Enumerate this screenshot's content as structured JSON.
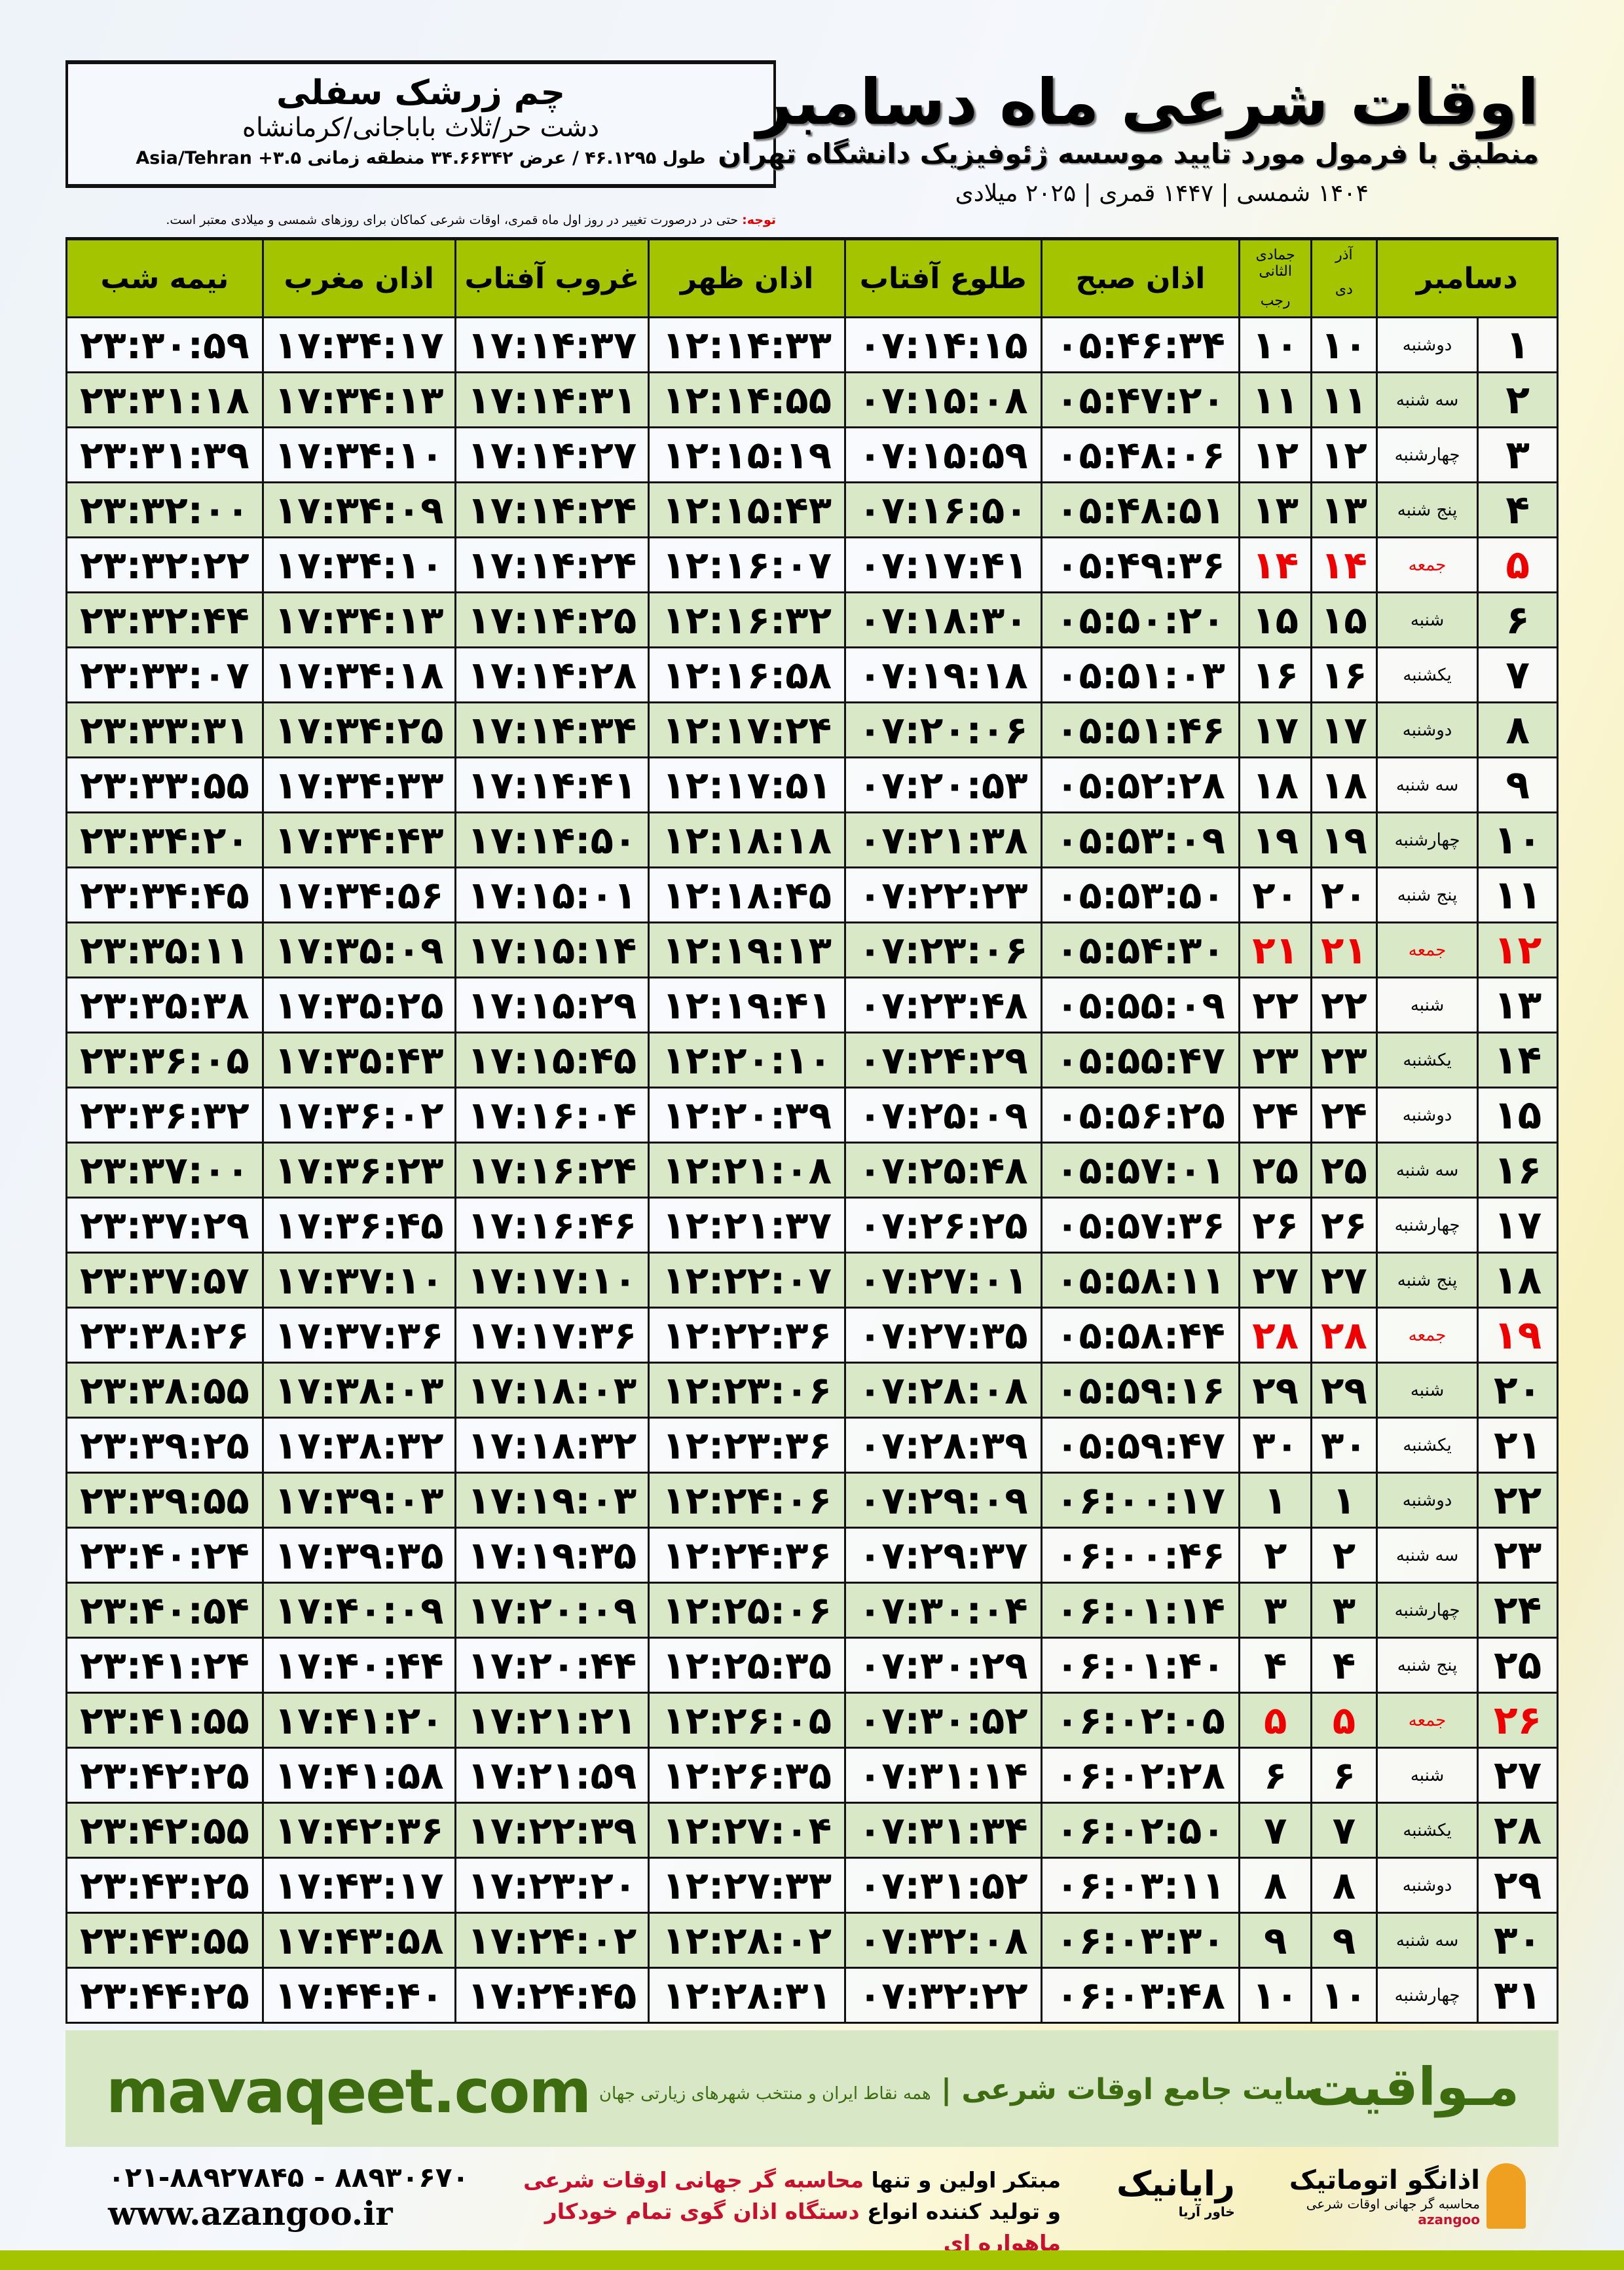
{
  "location": {
    "name": "چم زرشک سفلی",
    "region": "دشت حر/ثلاث باباجانی/کرمانشاه",
    "coords": "طول ۴۶.۱۲۹۵ / عرض ۳۴.۶۶۳۴۲ منطقه زمانی ۳.۵+ Asia/Tehran"
  },
  "header": {
    "title": "اوقات شرعی ماه دسامبر",
    "subtitle": "منطبق با فرمول مورد تایید موسسه ژئوفیزیک دانشگاه تهران",
    "years": "۱۴۰۴ شمسی | ۱۴۴۷ قمری | ۲۰۲۵ میلادی"
  },
  "note": {
    "label": "توجه:",
    "text": " حتی در درصورت تغییر در روز اول ماه قمری، اوقات شرعی کماکان برای روزهای شمسی و میلادی معتبر است."
  },
  "columns": {
    "month": "دسامبر",
    "dey_top": "آذر",
    "dey": "دی",
    "rajab_top": "جمادی الثانی",
    "rajab": "رجب",
    "fajr": "اذان صبح",
    "sunrise": "طلوع آفتاب",
    "dhuhr": "اذان ظهر",
    "sunset": "غروب آفتاب",
    "maghrib": "اذان مغرب",
    "midnight": "نیمه شب"
  },
  "friday_color": "#e00000",
  "header_color": "#a4c400",
  "alt_row_color": "#d9e8c6",
  "rows": [
    [
      "۱",
      "دوشنبه",
      "۱۰",
      "۱۰",
      "۰۵:۴۶:۳۴",
      "۰۷:۱۴:۱۵",
      "۱۲:۱۴:۳۳",
      "۱۷:۱۴:۳۷",
      "۱۷:۳۴:۱۷",
      "۲۳:۳۰:۵۹"
    ],
    [
      "۲",
      "سه شنبه",
      "۱۱",
      "۱۱",
      "۰۵:۴۷:۲۰",
      "۰۷:۱۵:۰۸",
      "۱۲:۱۴:۵۵",
      "۱۷:۱۴:۳۱",
      "۱۷:۳۴:۱۳",
      "۲۳:۳۱:۱۸"
    ],
    [
      "۳",
      "چهارشنبه",
      "۱۲",
      "۱۲",
      "۰۵:۴۸:۰۶",
      "۰۷:۱۵:۵۹",
      "۱۲:۱۵:۱۹",
      "۱۷:۱۴:۲۷",
      "۱۷:۳۴:۱۰",
      "۲۳:۳۱:۳۹"
    ],
    [
      "۴",
      "پنج شنبه",
      "۱۳",
      "۱۳",
      "۰۵:۴۸:۵۱",
      "۰۷:۱۶:۵۰",
      "۱۲:۱۵:۴۳",
      "۱۷:۱۴:۲۴",
      "۱۷:۳۴:۰۹",
      "۲۳:۳۲:۰۰"
    ],
    [
      "۵",
      "جمعه",
      "۱۴",
      "۱۴",
      "۰۵:۴۹:۳۶",
      "۰۷:۱۷:۴۱",
      "۱۲:۱۶:۰۷",
      "۱۷:۱۴:۲۴",
      "۱۷:۳۴:۱۰",
      "۲۳:۳۲:۲۲"
    ],
    [
      "۶",
      "شنبه",
      "۱۵",
      "۱۵",
      "۰۵:۵۰:۲۰",
      "۰۷:۱۸:۳۰",
      "۱۲:۱۶:۳۲",
      "۱۷:۱۴:۲۵",
      "۱۷:۳۴:۱۳",
      "۲۳:۳۲:۴۴"
    ],
    [
      "۷",
      "یکشنبه",
      "۱۶",
      "۱۶",
      "۰۵:۵۱:۰۳",
      "۰۷:۱۹:۱۸",
      "۱۲:۱۶:۵۸",
      "۱۷:۱۴:۲۸",
      "۱۷:۳۴:۱۸",
      "۲۳:۳۳:۰۷"
    ],
    [
      "۸",
      "دوشنبه",
      "۱۷",
      "۱۷",
      "۰۵:۵۱:۴۶",
      "۰۷:۲۰:۰۶",
      "۱۲:۱۷:۲۴",
      "۱۷:۱۴:۳۴",
      "۱۷:۳۴:۲۵",
      "۲۳:۳۳:۳۱"
    ],
    [
      "۹",
      "سه شنبه",
      "۱۸",
      "۱۸",
      "۰۵:۵۲:۲۸",
      "۰۷:۲۰:۵۳",
      "۱۲:۱۷:۵۱",
      "۱۷:۱۴:۴۱",
      "۱۷:۳۴:۳۳",
      "۲۳:۳۳:۵۵"
    ],
    [
      "۱۰",
      "چهارشنبه",
      "۱۹",
      "۱۹",
      "۰۵:۵۳:۰۹",
      "۰۷:۲۱:۳۸",
      "۱۲:۱۸:۱۸",
      "۱۷:۱۴:۵۰",
      "۱۷:۳۴:۴۳",
      "۲۳:۳۴:۲۰"
    ],
    [
      "۱۱",
      "پنج شنبه",
      "۲۰",
      "۲۰",
      "۰۵:۵۳:۵۰",
      "۰۷:۲۲:۲۳",
      "۱۲:۱۸:۴۵",
      "۱۷:۱۵:۰۱",
      "۱۷:۳۴:۵۶",
      "۲۳:۳۴:۴۵"
    ],
    [
      "۱۲",
      "جمعه",
      "۲۱",
      "۲۱",
      "۰۵:۵۴:۳۰",
      "۰۷:۲۳:۰۶",
      "۱۲:۱۹:۱۳",
      "۱۷:۱۵:۱۴",
      "۱۷:۳۵:۰۹",
      "۲۳:۳۵:۱۱"
    ],
    [
      "۱۳",
      "شنبه",
      "۲۲",
      "۲۲",
      "۰۵:۵۵:۰۹",
      "۰۷:۲۳:۴۸",
      "۱۲:۱۹:۴۱",
      "۱۷:۱۵:۲۹",
      "۱۷:۳۵:۲۵",
      "۲۳:۳۵:۳۸"
    ],
    [
      "۱۴",
      "یکشنبه",
      "۲۳",
      "۲۳",
      "۰۵:۵۵:۴۷",
      "۰۷:۲۴:۲۹",
      "۱۲:۲۰:۱۰",
      "۱۷:۱۵:۴۵",
      "۱۷:۳۵:۴۳",
      "۲۳:۳۶:۰۵"
    ],
    [
      "۱۵",
      "دوشنبه",
      "۲۴",
      "۲۴",
      "۰۵:۵۶:۲۵",
      "۰۷:۲۵:۰۹",
      "۱۲:۲۰:۳۹",
      "۱۷:۱۶:۰۴",
      "۱۷:۳۶:۰۲",
      "۲۳:۳۶:۳۲"
    ],
    [
      "۱۶",
      "سه شنبه",
      "۲۵",
      "۲۵",
      "۰۵:۵۷:۰۱",
      "۰۷:۲۵:۴۸",
      "۱۲:۲۱:۰۸",
      "۱۷:۱۶:۲۴",
      "۱۷:۳۶:۲۳",
      "۲۳:۳۷:۰۰"
    ],
    [
      "۱۷",
      "چهارشنبه",
      "۲۶",
      "۲۶",
      "۰۵:۵۷:۳۶",
      "۰۷:۲۶:۲۵",
      "۱۲:۲۱:۳۷",
      "۱۷:۱۶:۴۶",
      "۱۷:۳۶:۴۵",
      "۲۳:۳۷:۲۹"
    ],
    [
      "۱۸",
      "پنج شنبه",
      "۲۷",
      "۲۷",
      "۰۵:۵۸:۱۱",
      "۰۷:۲۷:۰۱",
      "۱۲:۲۲:۰۷",
      "۱۷:۱۷:۱۰",
      "۱۷:۳۷:۱۰",
      "۲۳:۳۷:۵۷"
    ],
    [
      "۱۹",
      "جمعه",
      "۲۸",
      "۲۸",
      "۰۵:۵۸:۴۴",
      "۰۷:۲۷:۳۵",
      "۱۲:۲۲:۳۶",
      "۱۷:۱۷:۳۶",
      "۱۷:۳۷:۳۶",
      "۲۳:۳۸:۲۶"
    ],
    [
      "۲۰",
      "شنبه",
      "۲۹",
      "۲۹",
      "۰۵:۵۹:۱۶",
      "۰۷:۲۸:۰۸",
      "۱۲:۲۳:۰۶",
      "۱۷:۱۸:۰۳",
      "۱۷:۳۸:۰۳",
      "۲۳:۳۸:۵۵"
    ],
    [
      "۲۱",
      "یکشنبه",
      "۳۰",
      "۳۰",
      "۰۵:۵۹:۴۷",
      "۰۷:۲۸:۳۹",
      "۱۲:۲۳:۳۶",
      "۱۷:۱۸:۳۲",
      "۱۷:۳۸:۳۲",
      "۲۳:۳۹:۲۵"
    ],
    [
      "۲۲",
      "دوشنبه",
      "۱",
      "۱",
      "۰۶:۰۰:۱۷",
      "۰۷:۲۹:۰۹",
      "۱۲:۲۴:۰۶",
      "۱۷:۱۹:۰۳",
      "۱۷:۳۹:۰۳",
      "۲۳:۳۹:۵۵"
    ],
    [
      "۲۳",
      "سه شنبه",
      "۲",
      "۲",
      "۰۶:۰۰:۴۶",
      "۰۷:۲۹:۳۷",
      "۱۲:۲۴:۳۶",
      "۱۷:۱۹:۳۵",
      "۱۷:۳۹:۳۵",
      "۲۳:۴۰:۲۴"
    ],
    [
      "۲۴",
      "چهارشنبه",
      "۳",
      "۳",
      "۰۶:۰۱:۱۴",
      "۰۷:۳۰:۰۴",
      "۱۲:۲۵:۰۶",
      "۱۷:۲۰:۰۹",
      "۱۷:۴۰:۰۹",
      "۲۳:۴۰:۵۴"
    ],
    [
      "۲۵",
      "پنج شنبه",
      "۴",
      "۴",
      "۰۶:۰۱:۴۰",
      "۰۷:۳۰:۲۹",
      "۱۲:۲۵:۳۵",
      "۱۷:۲۰:۴۴",
      "۱۷:۴۰:۴۴",
      "۲۳:۴۱:۲۴"
    ],
    [
      "۲۶",
      "جمعه",
      "۵",
      "۵",
      "۰۶:۰۲:۰۵",
      "۰۷:۳۰:۵۲",
      "۱۲:۲۶:۰۵",
      "۱۷:۲۱:۲۱",
      "۱۷:۴۱:۲۰",
      "۲۳:۴۱:۵۵"
    ],
    [
      "۲۷",
      "شنبه",
      "۶",
      "۶",
      "۰۶:۰۲:۲۸",
      "۰۷:۳۱:۱۴",
      "۱۲:۲۶:۳۵",
      "۱۷:۲۱:۵۹",
      "۱۷:۴۱:۵۸",
      "۲۳:۴۲:۲۵"
    ],
    [
      "۲۸",
      "یکشنبه",
      "۷",
      "۷",
      "۰۶:۰۲:۵۰",
      "۰۷:۳۱:۳۴",
      "۱۲:۲۷:۰۴",
      "۱۷:۲۲:۳۹",
      "۱۷:۴۲:۳۶",
      "۲۳:۴۲:۵۵"
    ],
    [
      "۲۹",
      "دوشنبه",
      "۸",
      "۸",
      "۰۶:۰۳:۱۱",
      "۰۷:۳۱:۵۲",
      "۱۲:۲۷:۳۳",
      "۱۷:۲۳:۲۰",
      "۱۷:۴۳:۱۷",
      "۲۳:۴۳:۲۵"
    ],
    [
      "۳۰",
      "سه شنبه",
      "۹",
      "۹",
      "۰۶:۰۳:۳۰",
      "۰۷:۳۲:۰۸",
      "۱۲:۲۸:۰۲",
      "۱۷:۲۴:۰۲",
      "۱۷:۴۳:۵۸",
      "۲۳:۴۳:۵۵"
    ],
    [
      "۳۱",
      "چهارشنبه",
      "۱۰",
      "۱۰",
      "۰۶:۰۳:۴۸",
      "۰۷:۳۲:۲۲",
      "۱۲:۲۸:۳۱",
      "۱۷:۲۴:۴۵",
      "۱۷:۴۴:۴۰",
      "۲۳:۴۴:۲۵"
    ]
  ],
  "banner": {
    "brand": "مـواقیت",
    "slogan": "سایت جامع اوقات شرعی",
    "slogan_sub": "همه نقاط ایران و منتخب شهرهای زیارتی جهان",
    "site": "mavaqeet.com"
  },
  "footer": {
    "phone": "۰۲۱-۸۸۹۲۷۸۴۵ - ۸۸۹۳۰۶۷۰",
    "web": "www.azangoo.ir",
    "promo1a": "مبتکر اولین و تنها ",
    "promo1b": "محاسبه گر جهانی اوقات شرعی",
    "promo2a": "و تولید کننده انواع ",
    "promo2b": "دستگاه اذان گوی تمام خودکار ماهواره ای",
    "logo1": "رایانیک",
    "logo1_sub": "خاور آریا",
    "logo2": "اذانگو اتوماتیک",
    "logo2_sub": "محاسبه گر جهانی اوقات شرعی",
    "logo2_en": "azangoo"
  }
}
